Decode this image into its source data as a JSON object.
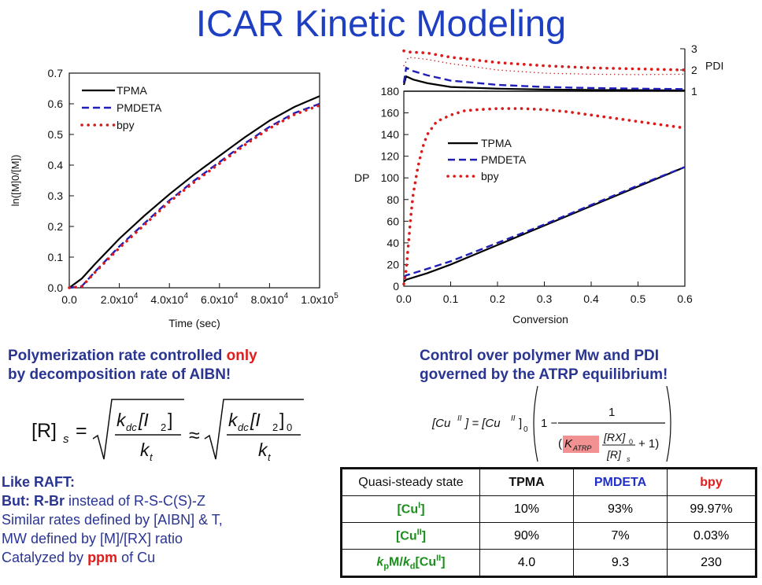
{
  "slide": {
    "title": "ICAR Kinetic Modeling",
    "left_caption_line1_a": "Polymerization rate controlled ",
    "left_caption_only": "only",
    "left_caption_line2": "by decomposition rate of AIBN!",
    "right_caption_line1": "Control over polymer Mw and PDI",
    "right_caption_line2": "governed by the ATRP equilibrium!",
    "eq_left": {
      "lhs": "[R]",
      "lhs_sub": "s",
      "eq": "=",
      "num1": "k",
      "num1_sub": "dc",
      "num1_rest": "[I",
      "num1_sub2": "2",
      "num1_close": "]",
      "den": "k",
      "den_sub": "t",
      "approx": "≈",
      "num2_close": "]",
      "num2_sub0": "0"
    },
    "eq_right": {
      "lhs": "[Cu",
      "sup": "II",
      "lhs_close": "] = [Cu",
      "rhs_close": "]",
      "sub0": "0",
      "one": "1 −",
      "num": "1",
      "open": "(",
      "k": "K",
      "k_sub": "ATRP",
      "frac_num": "[RX]",
      "frac_num_sub": "0",
      "frac_den": "[R]",
      "frac_den_sub": "s",
      "plus": "+ 1)"
    },
    "notes": {
      "line1": "Like RAFT:",
      "line2_bold": "But: R-Br",
      "line2_rest": " instead of  R-S-C(S)-Z",
      "line3": "Similar rates defined by [AIBN] & T,",
      "line4": " MW defined by [M]/[RX] ratio",
      "line5_a": "Catalyzed by ",
      "line5_ppm": "ppm",
      "line5_b": " of Cu"
    },
    "table": {
      "header": [
        "Quasi-steady state",
        "TPMA",
        "PMDETA",
        "bpy"
      ],
      "rows": [
        {
          "label": "[Cu",
          "sup": "I",
          "close": "]",
          "values": [
            "10%",
            "93%",
            "99.97%"
          ]
        },
        {
          "label": "[Cu",
          "sup": "II",
          "close": "]",
          "values": [
            "90%",
            "7%",
            "0.03%"
          ]
        },
        {
          "label_k": "k",
          "label_sub_p": "p",
          "label_mid": "M/",
          "label_k2": "k",
          "label_sub_d": "d",
          "label_cu": "[Cu",
          "sup": "II",
          "close": "]",
          "values": [
            "4.0",
            "9.3",
            "230"
          ]
        }
      ]
    }
  },
  "chart_data": [
    {
      "type": "line",
      "xlabel": "Time (sec)",
      "ylabel": "ln([M]0/[M])",
      "xlim": [
        0,
        100000
      ],
      "ylim": [
        0,
        0.7
      ],
      "x_ticks": [
        "0.0",
        "2.0x10^4",
        "4.0x10^4",
        "6.0x10^4",
        "8.0x10^4",
        "1.0x10^5"
      ],
      "y_ticks": [
        "0.0",
        "0.1",
        "0.2",
        "0.3",
        "0.4",
        "0.5",
        "0.6",
        "0.7"
      ],
      "legend_position": "top-left",
      "series": [
        {
          "name": "TPMA",
          "color": "#000000",
          "style": "solid",
          "x": [
            0,
            5000,
            10000,
            20000,
            30000,
            40000,
            50000,
            60000,
            70000,
            80000,
            90000,
            100000
          ],
          "y": [
            0,
            0.03,
            0.075,
            0.16,
            0.235,
            0.305,
            0.37,
            0.43,
            0.49,
            0.545,
            0.59,
            0.625
          ]
        },
        {
          "name": "PMDETA",
          "color": "#1f1fb8",
          "style": "dashed",
          "x": [
            0,
            5000,
            10000,
            20000,
            30000,
            40000,
            50000,
            60000,
            70000,
            80000,
            90000,
            100000
          ],
          "y": [
            0,
            0.005,
            0.05,
            0.135,
            0.21,
            0.285,
            0.35,
            0.41,
            0.47,
            0.525,
            0.57,
            0.6
          ]
        },
        {
          "name": "bpy",
          "color": "#d91b1b",
          "style": "dotted",
          "x": [
            0,
            5000,
            10000,
            20000,
            30000,
            40000,
            50000,
            60000,
            70000,
            80000,
            90000,
            100000
          ],
          "y": [
            0,
            0.004,
            0.048,
            0.13,
            0.205,
            0.28,
            0.345,
            0.405,
            0.465,
            0.52,
            0.565,
            0.595
          ]
        }
      ]
    },
    {
      "type": "line",
      "xlabel": "Conversion",
      "ylabel": "DP",
      "xlim": [
        0,
        0.6
      ],
      "ylim": [
        0,
        180
      ],
      "x_ticks": [
        "0.0",
        "0.1",
        "0.2",
        "0.3",
        "0.4",
        "0.5",
        "0.6"
      ],
      "y_ticks": [
        "0",
        "20",
        "40",
        "60",
        "80",
        "100",
        "120",
        "140",
        "160",
        "180"
      ],
      "legend_position": "center-left",
      "series": [
        {
          "name": "TPMA",
          "color": "#000000",
          "style": "solid",
          "x": [
            0,
            0.005,
            0.05,
            0.1,
            0.2,
            0.3,
            0.4,
            0.5,
            0.6
          ],
          "y": [
            4,
            6,
            12,
            20,
            38,
            56,
            74,
            92,
            110
          ]
        },
        {
          "name": "PMDETA",
          "color": "#1f1fb8",
          "style": "dashed",
          "x": [
            0,
            0.005,
            0.05,
            0.1,
            0.2,
            0.3,
            0.4,
            0.5,
            0.6
          ],
          "y": [
            8,
            10,
            16,
            23,
            40,
            57,
            75,
            93,
            110
          ]
        },
        {
          "name": "bpy",
          "color": "#d91b1b",
          "style": "dotted",
          "x": [
            0.0,
            0.005,
            0.01,
            0.015,
            0.02,
            0.03,
            0.04,
            0.05,
            0.07,
            0.1,
            0.13,
            0.16,
            0.2,
            0.25,
            0.3,
            0.35,
            0.4,
            0.45,
            0.5,
            0.55,
            0.6
          ],
          "y": [
            2,
            15,
            40,
            65,
            85,
            110,
            128,
            140,
            152,
            158,
            162,
            163,
            164,
            164,
            163,
            161,
            158,
            155,
            152,
            149,
            146
          ]
        }
      ]
    },
    {
      "type": "line",
      "ylabel": "PDI",
      "xlim": [
        0,
        0.6
      ],
      "ylim": [
        1,
        3
      ],
      "y_ticks": [
        "1",
        "2",
        "3"
      ],
      "series": [
        {
          "name": "TPMA",
          "color": "#000000",
          "style": "solid",
          "x": [
            0.0,
            0.005,
            0.02,
            0.05,
            0.1,
            0.2,
            0.3,
            0.4,
            0.5,
            0.6
          ],
          "y": [
            1.3,
            1.7,
            1.55,
            1.38,
            1.2,
            1.12,
            1.08,
            1.06,
            1.05,
            1.04
          ]
        },
        {
          "name": "PMDETA",
          "color": "#1f1fb8",
          "style": "dashed",
          "x": [
            0.0,
            0.005,
            0.02,
            0.05,
            0.1,
            0.2,
            0.3,
            0.4,
            0.5,
            0.6
          ],
          "y": [
            1.4,
            2.1,
            1.95,
            1.75,
            1.5,
            1.3,
            1.2,
            1.15,
            1.12,
            1.1
          ]
        },
        {
          "name": "bpy",
          "color": "#d91b1b",
          "style": "dotted",
          "x": [
            0.0,
            0.01,
            0.05,
            0.1,
            0.2,
            0.3,
            0.4,
            0.5,
            0.6
          ],
          "y": [
            2.9,
            2.85,
            2.8,
            2.6,
            2.35,
            2.2,
            2.1,
            2.05,
            2.0
          ]
        },
        {
          "name": "bpy",
          "color": "#d91b1b",
          "style": "dotted-fine",
          "x": [
            0.0,
            0.01,
            0.05,
            0.1,
            0.2,
            0.3,
            0.4,
            0.5,
            0.6
          ],
          "y": [
            2.2,
            2.6,
            2.5,
            2.3,
            2.0,
            1.85,
            1.8,
            1.78,
            1.8
          ]
        }
      ]
    }
  ]
}
